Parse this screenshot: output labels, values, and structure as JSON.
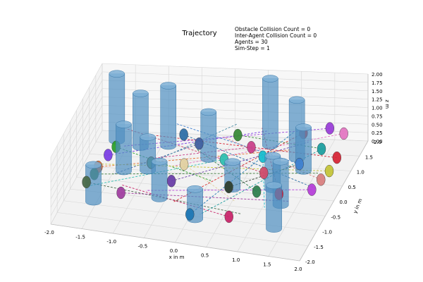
{
  "chart_data": {
    "type": "scatter",
    "projection": "3d",
    "title": "Trajectory",
    "info_lines": [
      "Obstacle Collision Count = 0",
      "Inter-Agent Collision Count = 0",
      "Agents = 30",
      "Sim-Step = 1"
    ],
    "xlabel": "x in m",
    "ylabel": "y in m",
    "zlabel": "z m",
    "xlim": [
      -2.0,
      2.0
    ],
    "ylim": [
      -2.0,
      2.0
    ],
    "zlim": [
      0.0,
      2.0
    ],
    "x_ticks": [
      "-2.0",
      "-1.5",
      "-1.0",
      "-0.5",
      "0.0",
      "0.5",
      "1.0",
      "1.5",
      "2.0"
    ],
    "y_ticks": [
      "-2.0",
      "-1.5",
      "-1.0",
      "-0.5",
      "0.0",
      "0.5",
      "1.0",
      "1.5",
      "2.0"
    ],
    "z_ticks": [
      "0.00",
      "0.25",
      "0.50",
      "0.75",
      "1.00",
      "1.25",
      "1.50",
      "1.75",
      "2.00"
    ],
    "grid": true,
    "obstacles": [
      {
        "x": -1.7,
        "y": 1.6,
        "radius": 0.13,
        "height": 2.0
      },
      {
        "x": -1.3,
        "y": 1.4,
        "radius": 0.13,
        "height": 1.6
      },
      {
        "x": -0.9,
        "y": 1.5,
        "radius": 0.13,
        "height": 1.8
      },
      {
        "x": -0.2,
        "y": 1.1,
        "radius": 0.13,
        "height": 1.4
      },
      {
        "x": 0.6,
        "y": 1.7,
        "radius": 0.13,
        "height": 2.0
      },
      {
        "x": 1.1,
        "y": 1.3,
        "radius": 0.13,
        "height": 1.75
      },
      {
        "x": 1.3,
        "y": 0.9,
        "radius": 0.13,
        "height": 1.3
      },
      {
        "x": -1.35,
        "y": 0.4,
        "radius": 0.13,
        "height": 1.4
      },
      {
        "x": -1.0,
        "y": 0.5,
        "radius": 0.13,
        "height": 1.0
      },
      {
        "x": 0.4,
        "y": 0.1,
        "radius": 0.13,
        "height": 0.8
      },
      {
        "x": 1.0,
        "y": 0.2,
        "radius": 0.13,
        "height": 1.0
      },
      {
        "x": 1.25,
        "y": -0.3,
        "radius": 0.13,
        "height": 1.3
      },
      {
        "x": -1.55,
        "y": -0.9,
        "radius": 0.13,
        "height": 1.1
      },
      {
        "x": -0.6,
        "y": -0.5,
        "radius": 0.13,
        "height": 1.1
      },
      {
        "x": 0.1,
        "y": -1.1,
        "radius": 0.13,
        "height": 0.9
      },
      {
        "x": 1.35,
        "y": -1.1,
        "radius": 0.13,
        "height": 1.3
      }
    ],
    "agents": [
      {
        "x": -1.55,
        "y": 0.2,
        "z": 0.6,
        "color": "#7b3fe4",
        "gx": 0.6,
        "gy": 1.5
      },
      {
        "x": -1.5,
        "y": 0.55,
        "z": 0.6,
        "color": "#2ca02c",
        "gx": 0.2,
        "gy": -0.4
      },
      {
        "x": -1.6,
        "y": -0.3,
        "z": 0.6,
        "color": "#e76f2f",
        "gx": 1.1,
        "gy": 0.9
      },
      {
        "x": -1.6,
        "y": -0.6,
        "z": 0.6,
        "color": "#3d7a3a",
        "gx": 1.7,
        "gy": 0.2
      },
      {
        "x": -1.65,
        "y": -0.95,
        "z": 0.6,
        "color": "#4a6a4a",
        "gx": 0.9,
        "gy": -1.4
      },
      {
        "x": -0.6,
        "y": 1.2,
        "z": 0.6,
        "color": "#2f6fa6",
        "gx": 1.8,
        "gy": -0.3
      },
      {
        "x": -0.3,
        "y": 0.9,
        "z": 0.6,
        "color": "#3f5f9f",
        "gx": -1.3,
        "gy": -0.5
      },
      {
        "x": 0.2,
        "y": 1.3,
        "z": 0.6,
        "color": "#3a8a3a",
        "gx": 1.6,
        "gy": 1.0
      },
      {
        "x": 0.5,
        "y": 0.9,
        "z": 0.6,
        "color": "#c9408a",
        "gx": -0.9,
        "gy": 0.2
      },
      {
        "x": 0.75,
        "y": 0.6,
        "z": 0.6,
        "color": "#17becf",
        "gx": 1.2,
        "gy": -1.1
      },
      {
        "x": 1.15,
        "y": 1.5,
        "z": 0.6,
        "color": "#d62728",
        "gx": -0.2,
        "gy": -1.3
      },
      {
        "x": 1.5,
        "y": 1.7,
        "z": 0.6,
        "color": "#9a3fd8",
        "gx": -1.4,
        "gy": 0.6
      },
      {
        "x": 1.75,
        "y": 1.55,
        "z": 0.6,
        "color": "#e377c2",
        "gx": -0.5,
        "gy": 0.0
      },
      {
        "x": 1.55,
        "y": 1.0,
        "z": 0.6,
        "color": "#1f9fa0",
        "gx": 0.3,
        "gy": -1.6
      },
      {
        "x": 1.85,
        "y": 0.75,
        "z": 0.6,
        "color": "#d62738",
        "gx": -1.0,
        "gy": 1.1
      },
      {
        "x": 1.85,
        "y": 0.3,
        "z": 0.6,
        "color": "#c4c43a",
        "gx": -1.7,
        "gy": -0.2
      },
      {
        "x": 1.8,
        "y": 0.0,
        "z": 0.6,
        "color": "#d88080",
        "gx": 0.0,
        "gy": 1.2
      },
      {
        "x": 1.75,
        "y": -0.35,
        "z": 0.6,
        "color": "#b53fd8",
        "gx": -0.7,
        "gy": -1.0
      },
      {
        "x": 1.3,
        "y": -0.6,
        "z": 0.6,
        "color": "#c8264a",
        "gx": 0.5,
        "gy": 1.6
      },
      {
        "x": 0.9,
        "y": 0.05,
        "z": 0.6,
        "color": "#cf4a6a",
        "gx": -1.5,
        "gy": 1.3
      },
      {
        "x": 0.95,
        "y": -0.6,
        "z": 0.6,
        "color": "#2f7f4f",
        "gx": -0.3,
        "gy": 0.7
      },
      {
        "x": 0.5,
        "y": -0.55,
        "z": 0.6,
        "color": "#2f3f2f",
        "gx": 1.4,
        "gy": 0.5
      },
      {
        "x": 0.75,
        "y": -1.55,
        "z": 0.6,
        "color": "#c8266a",
        "gx": -1.1,
        "gy": -0.9
      },
      {
        "x": 0.15,
        "y": -1.65,
        "z": 0.6,
        "color": "#1f77b4",
        "gx": 1.0,
        "gy": 1.5
      },
      {
        "x": -0.35,
        "y": 0.1,
        "z": 0.6,
        "color": "#e0d0a0",
        "gx": 0.7,
        "gy": -1.0
      },
      {
        "x": -0.4,
        "y": -0.55,
        "z": 0.6,
        "color": "#6a3fa8",
        "gx": 1.3,
        "gy": 1.2
      },
      {
        "x": -1.05,
        "y": -1.2,
        "z": 0.6,
        "color": "#a03fa0",
        "gx": 1.5,
        "gy": -0.8
      },
      {
        "x": -0.85,
        "y": 0.05,
        "z": 0.6,
        "color": "#4f8fa8",
        "gx": 0.1,
        "gy": 1.7
      },
      {
        "x": 0.2,
        "y": 0.4,
        "z": 0.6,
        "color": "#2fbfb0",
        "gx": -1.6,
        "gy": -1.1
      },
      {
        "x": 1.35,
        "y": 0.45,
        "z": 0.6,
        "color": "#3f7fcf",
        "gx": -0.8,
        "gy": 1.6
      }
    ]
  }
}
